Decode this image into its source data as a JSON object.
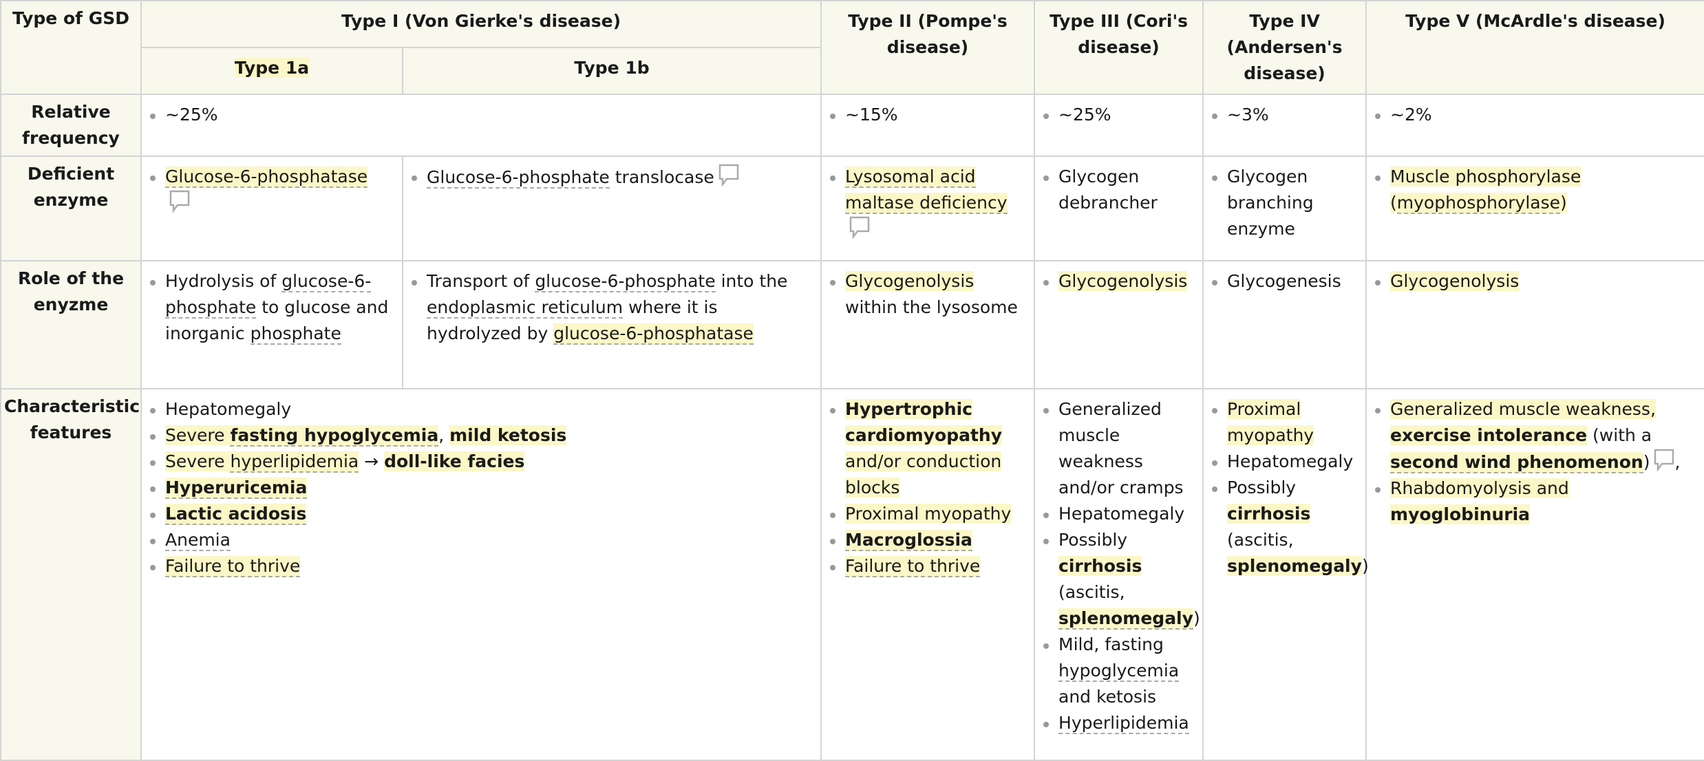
{
  "header": {
    "type_of_gsd": "Type of GSD",
    "type1": "Type I (Von Gierke's disease)",
    "type1a": "Type 1a",
    "type1b": "Type 1b",
    "type2": "Type II (Pompe's disease)",
    "type3": "Type III (Cori's disease)",
    "type4": "Type IV (Andersen's disease)",
    "type5": "Type V (McArdle's disease)"
  },
  "rows": {
    "relative_frequency": {
      "label": "Relative frequency",
      "type1": "~25%",
      "type2": "~15%",
      "type3": "~25%",
      "type4": "~3%",
      "type5": "~2%"
    },
    "deficient_enzyme": {
      "label": "Deficient enzyme",
      "type1a": "Glucose-6-phosphatase",
      "type1b_a": "Glucose-6-phosphate",
      "type1b_b": " translocase",
      "type2": "Lysosomal acid maltase deficiency",
      "type3": "Glycogen debrancher",
      "type4": "Glycogen branching enzyme",
      "type5_a": "Muscle phosphorylase",
      "type5_b": "(",
      "type5_c": "myophosphorylase",
      "type5_d": ")"
    },
    "role": {
      "label": "Role of the enyzme",
      "type1a_a": "Hydrolysis of ",
      "type1a_b": "glucose-6-phosphate",
      "type1a_c": " to glucose and inorganic ",
      "type1a_d": "phosphate",
      "type1b_a": "Transport of ",
      "type1b_b": "glucose-6-phosphate",
      "type1b_c": " into the ",
      "type1b_d": "endoplasmic reticulum",
      "type1b_e": " where it is hydrolyzed by ",
      "type1b_f": "glucose-6-phosphatase",
      "type2_a": "Glycogenolysis",
      "type2_b": " within the lysosome",
      "type3": "Glycogenolysis",
      "type4": "Glycogenesis",
      "type5": "Glycogenolysis"
    },
    "features": {
      "label": "Characteristic features",
      "type1": {
        "i1": "Hepatomegaly",
        "i2a": "Severe ",
        "i2b": "fasting hypoglycemia",
        "i2c": ", ",
        "i2d": "mild ketosis",
        "i3a": "Severe ",
        "i3b": "hyperlipidemia",
        "i3c": " → ",
        "i3d": "doll-like facies",
        "i4": "Hyperuricemia",
        "i5": "Lactic acidosis",
        "i6": "Anemia",
        "i7": "Failure to thrive"
      },
      "type2": {
        "i1a": "Hypertrophic cardiomyopathy",
        "i1b": " and/or conduction blocks",
        "i2": "Proximal myopathy",
        "i3": "Macroglossia",
        "i4": "Failure to thrive"
      },
      "type3": {
        "i1": "Generalized muscle weakness and/or cramps",
        "i2": "Hepatomegaly",
        "i3a": "Possibly ",
        "i3b": "cirrhosis",
        "i3c": " (ascitis, ",
        "i3d": "splenomegaly",
        "i3e": ")",
        "i4a": "Mild, fasting ",
        "i4b": "hypoglycemia",
        "i4c": " and ketosis",
        "i5": "Hyperlipidemia"
      },
      "type4": {
        "i1": "Proximal myopathy",
        "i2": "Hepatomegaly",
        "i3a": "Possibly ",
        "i3b": "cirrhosis",
        "i3c": " (ascitis, ",
        "i3d": "splenomegaly",
        "i3e": ")"
      },
      "type5": {
        "i1a": "Generalized muscle weakness, ",
        "i1b": "exercise intolerance",
        "i1c": " (with a ",
        "i1d": "second wind phenomenon",
        "i1e": ")",
        "i1f": ",",
        "i2a": "Rhabdomyolysis and ",
        "i2b": "myoglobinuria"
      }
    }
  },
  "icons": {
    "comment": "speech-bubble-icon"
  },
  "colors": {
    "header_bg": "#f8f8ed",
    "highlight": "#fbf7c7",
    "border": "#d4d4d4"
  }
}
